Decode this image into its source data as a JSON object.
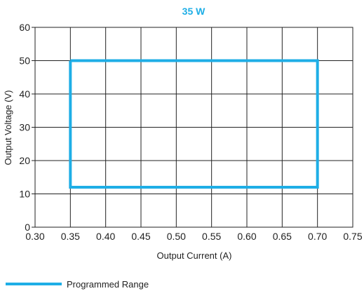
{
  "chart_data": {
    "type": "line",
    "title": "35 W",
    "xlabel": "Output Current (A)",
    "ylabel": "Output Voltage (V)",
    "xlim": [
      0.3,
      0.75
    ],
    "ylim": [
      0,
      60
    ],
    "x_ticks": [
      "0.30",
      "0.35",
      "0.40",
      "0.45",
      "0.50",
      "0.55",
      "0.60",
      "0.65",
      "0.70",
      "0.75"
    ],
    "y_ticks": [
      "0",
      "10",
      "20",
      "30",
      "40",
      "50",
      "60"
    ],
    "grid": true,
    "legend_position": "bottom-left",
    "series": [
      {
        "name": "Programmed Range",
        "color": "#1eaee6",
        "points": [
          [
            0.35,
            50
          ],
          [
            0.7,
            50
          ],
          [
            0.7,
            12
          ],
          [
            0.35,
            12
          ],
          [
            0.35,
            50
          ]
        ]
      }
    ]
  },
  "colors": {
    "title": "#1eaee6",
    "grid": "#222222",
    "series": "#1eaee6"
  }
}
